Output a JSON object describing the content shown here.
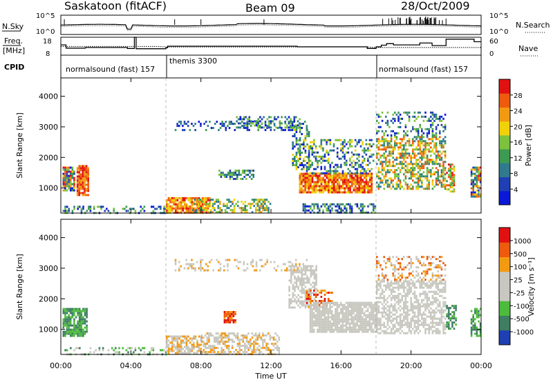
{
  "header": {
    "station": "Saskatoon (fitACF)",
    "beam": "Beam 09",
    "date": "28/Oct/2009"
  },
  "left_labels": {
    "nsky": "N.Sky",
    "freq_line1": "Freq.",
    "freq_line2": "[MHz]",
    "cpid": "CPID",
    "nsky_ticks": [
      "10^5",
      "10^0"
    ],
    "freq_ticks": [
      "18",
      "8"
    ]
  },
  "right_labels": {
    "nsearch": "N.Search",
    "nave": "Nave",
    "nsearch_ticks": [
      "10^5",
      "10^0"
    ],
    "nave_ticks": [
      "60",
      "0"
    ]
  },
  "cpid_segments": [
    {
      "label": "normalsound (fast) 157",
      "start_hour": 0
    },
    {
      "label": "themis 3300",
      "start_hour": 6
    },
    {
      "label": "normalsound (fast) 157",
      "start_hour": 18
    }
  ],
  "chart_data": [
    {
      "type": "heatmap",
      "name": "power",
      "ylabel": "Slant Range [km]",
      "y_ticks": [
        1000,
        2000,
        3000,
        4000
      ],
      "ylim": [
        180,
        4600
      ],
      "xlim": [
        0,
        24
      ],
      "colorbar_label": "Power [dB]",
      "colorbar_ticks": [
        "28",
        "24",
        "20",
        "16",
        "12",
        "8",
        "4"
      ],
      "colorbar_range": [
        0,
        32
      ],
      "colors": [
        "#0a18d8",
        "#1f3fb4",
        "#2f7a8c",
        "#3d9a52",
        "#7cc23c",
        "#f1d10a",
        "#f19a12",
        "#ee5a0e",
        "#e21111"
      ]
    },
    {
      "type": "heatmap",
      "name": "velocity",
      "ylabel": "Slant Range [km]",
      "y_ticks": [
        1000,
        2000,
        3000,
        4000
      ],
      "ylim": [
        180,
        4600
      ],
      "xlim": [
        0,
        24
      ],
      "xlabel": "Time UT",
      "x_ticks": [
        "00:00",
        "04:00",
        "08:00",
        "12:00",
        "16:00",
        "20:00",
        "00:00"
      ],
      "x_tick_hours": [
        0,
        4,
        8,
        12,
        16,
        20,
        24
      ],
      "colorbar_label": "Velocity  [m s⁻¹]",
      "colorbar_ticks": [
        "1000",
        "500",
        "100",
        "25",
        "-25",
        "-100",
        "-500",
        "-1000"
      ],
      "colors": [
        "#1f3fb4",
        "#3e7e62",
        "#4dbb3b",
        "#c8c8c0",
        "#c8c8c0",
        "#f49a12",
        "#ee5a0e",
        "#e21111"
      ]
    }
  ]
}
